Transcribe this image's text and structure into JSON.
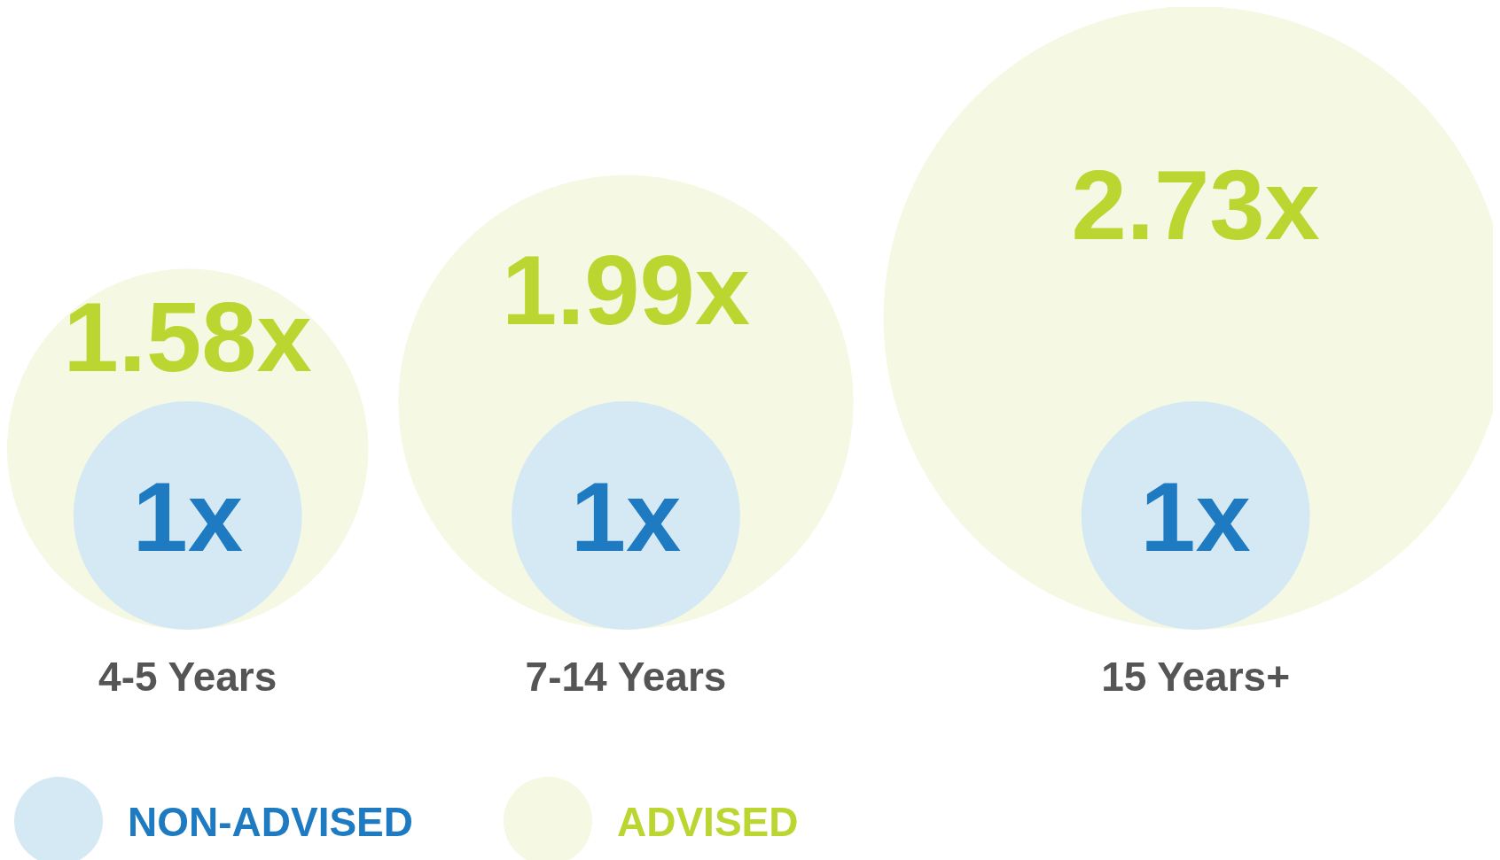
{
  "chart_data": {
    "type": "other",
    "categories": [
      "4-5 Years",
      "7-14 Years",
      "15 Years+"
    ],
    "series": [
      {
        "name": "NON-ADVISED",
        "color": "#d5e9f5",
        "values": [
          1,
          1,
          1
        ],
        "value_labels": [
          "1x",
          "1x",
          "1x"
        ]
      },
      {
        "name": "ADVISED",
        "color": "#f5f8e3",
        "values": [
          1.58,
          1.99,
          2.73
        ],
        "value_labels": [
          "1.58x",
          "1.99x",
          "2.73x"
        ]
      }
    ],
    "legend": "bottom"
  }
}
